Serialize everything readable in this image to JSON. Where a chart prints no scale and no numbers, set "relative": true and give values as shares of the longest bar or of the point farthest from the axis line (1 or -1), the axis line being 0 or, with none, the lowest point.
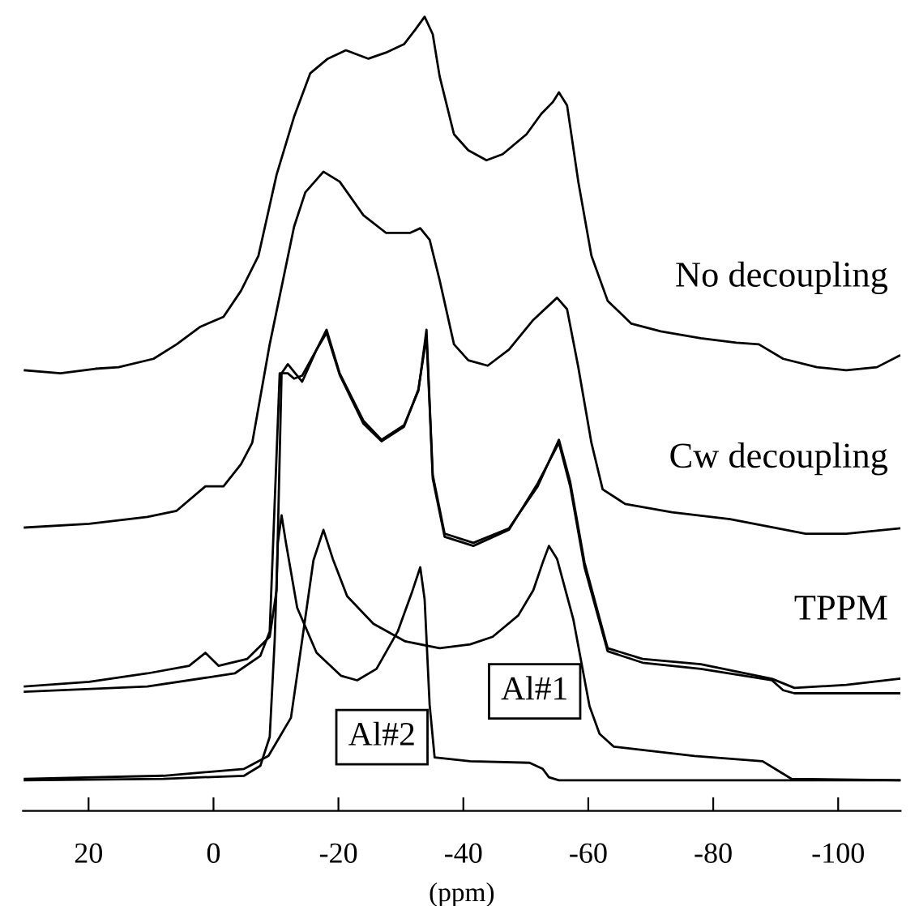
{
  "chart_data": {
    "type": "line",
    "relative": true,
    "xlabel": "(ppm)",
    "xlim": [
      30.5,
      -110
    ],
    "xticks": [
      20,
      0,
      -20,
      -40,
      -60,
      -80,
      -100
    ],
    "tick_labels": "x",
    "grid": false,
    "legend": false,
    "marker": "none",
    "line_style": "solid",
    "series": [
      {
        "name": "No decoupling",
        "color": "#000000",
        "x": [
          30.2,
          24.5,
          18.9,
          15.2,
          9.6,
          5.9,
          2.1,
          -1.6,
          -4.4,
          -7.2,
          -10.1,
          -12.9,
          -15.5,
          -18.3,
          -21.2,
          -24.8,
          -27.6,
          -30.5,
          -32.3,
          -33.8,
          -35.1,
          -36.2,
          -38.5,
          -40.8,
          -43.7,
          -46.3,
          -50.1,
          -52.5,
          -54.3,
          -55.3,
          -56.6,
          -58.4,
          -60.5,
          -63.1,
          -66.9,
          -71.6,
          -78.0,
          -83.7,
          -87.3,
          -91.2,
          -96.6,
          -101.3,
          -106.2,
          -109.8
        ],
        "values": [
          0.537,
          0.533,
          0.539,
          0.541,
          0.552,
          0.571,
          0.594,
          0.607,
          0.641,
          0.687,
          0.793,
          0.869,
          0.926,
          0.945,
          0.956,
          0.945,
          0.953,
          0.964,
          0.983,
          1.0,
          0.977,
          0.922,
          0.846,
          0.825,
          0.812,
          0.82,
          0.846,
          0.873,
          0.888,
          0.901,
          0.884,
          0.784,
          0.687,
          0.628,
          0.598,
          0.588,
          0.579,
          0.573,
          0.571,
          0.552,
          0.541,
          0.537,
          0.541,
          0.556
        ]
      },
      {
        "name": "Cw decoupling",
        "color": "#000000",
        "x": [
          30.2,
          19.9,
          10.6,
          5.9,
          1.3,
          -1.6,
          -4.4,
          -6.2,
          -9.0,
          -12.9,
          -14.7,
          -17.6,
          -20.2,
          -24.0,
          -27.6,
          -31.5,
          -33.1,
          -34.6,
          -36.2,
          -38.5,
          -40.8,
          -43.9,
          -47.3,
          -51.2,
          -55.0,
          -56.6,
          -58.4,
          -60.5,
          -62.3,
          -65.9,
          -73.4,
          -82.7,
          -94.8,
          -101.3,
          -109.8
        ],
        "values": [
          0.331,
          0.336,
          0.345,
          0.353,
          0.385,
          0.385,
          0.414,
          0.442,
          0.571,
          0.725,
          0.77,
          0.797,
          0.784,
          0.74,
          0.717,
          0.717,
          0.723,
          0.708,
          0.655,
          0.571,
          0.55,
          0.543,
          0.564,
          0.603,
          0.632,
          0.617,
          0.541,
          0.442,
          0.381,
          0.362,
          0.351,
          0.342,
          0.323,
          0.323,
          0.33
        ]
      },
      {
        "name": "TPPM",
        "color": "#000000",
        "x": [
          30.2,
          19.9,
          10.6,
          3.9,
          1.3,
          -0.8,
          -5.4,
          -9.0,
          -10.1,
          -10.9,
          -11.9,
          -14.2,
          -16.5,
          -18.1,
          -20.2,
          -24.0,
          -26.9,
          -30.5,
          -32.8,
          -34.1,
          -34.6,
          -35.1,
          -37.0,
          -41.6,
          -47.3,
          -51.9,
          -55.3,
          -57.1,
          -59.4,
          -63.1,
          -68.7,
          -78.0,
          -89.4,
          -93.0,
          -101.3,
          -109.8
        ],
        "values": [
          0.123,
          0.129,
          0.14,
          0.15,
          0.167,
          0.15,
          0.159,
          0.188,
          0.249,
          0.533,
          0.545,
          0.522,
          0.564,
          0.59,
          0.533,
          0.471,
          0.446,
          0.465,
          0.51,
          0.59,
          0.495,
          0.4,
          0.323,
          0.311,
          0.33,
          0.385,
          0.446,
          0.391,
          0.285,
          0.173,
          0.159,
          0.152,
          0.133,
          0.121,
          0.125,
          0.133
        ]
      },
      {
        "color": "#000000",
        "x": [
          30.2,
          10.6,
          -3.4,
          -7.5,
          -9.0,
          -10.6,
          -11.9,
          -12.9,
          -14.2,
          -16.5,
          -18.1,
          -20.2,
          -24.0,
          -26.9,
          -30.5,
          -32.8,
          -34.1,
          -34.6,
          -35.1,
          -37.0,
          -41.6,
          -47.3,
          -51.9,
          -55.3,
          -57.1,
          -59.4,
          -63.1,
          -68.7,
          -78.0,
          -89.4,
          -91.2,
          -93.0,
          -109.8
        ],
        "values": [
          0.116,
          0.123,
          0.14,
          0.163,
          0.195,
          0.533,
          0.533,
          0.526,
          0.53,
          0.564,
          0.586,
          0.531,
          0.467,
          0.444,
          0.463,
          0.512,
          0.581,
          0.49,
          0.395,
          0.319,
          0.307,
          0.328,
          0.389,
          0.442,
          0.385,
          0.279,
          0.169,
          0.154,
          0.146,
          0.131,
          0.118,
          0.114,
          0.114
        ]
      },
      {
        "color": "#000000",
        "x": [
          30.2,
          8.0,
          -4.9,
          -7.5,
          -9.0,
          -9.8,
          -10.3,
          -10.9,
          -11.6,
          -13.4,
          -16.5,
          -20.4,
          -23.0,
          -26.1,
          -29.5,
          -31.8,
          -33.1,
          -33.8,
          -34.6,
          -35.4,
          -41.1,
          -50.6,
          -52.7,
          -53.7,
          -55.3,
          -110.0
        ],
        "values": [
          0.0,
          0.002,
          0.006,
          0.019,
          0.057,
          0.184,
          0.311,
          0.347,
          0.311,
          0.226,
          0.167,
          0.137,
          0.131,
          0.146,
          0.195,
          0.247,
          0.279,
          0.237,
          0.099,
          0.03,
          0.025,
          0.023,
          0.015,
          0.004,
          0.0,
          0.0
        ]
      },
      {
        "color": "#000000",
        "x": [
          30.2,
          8.0,
          -4.9,
          -8.8,
          -10.6,
          -12.4,
          -14.2,
          -16.0,
          -17.6,
          -19.1,
          -21.4,
          -25.6,
          -30.7,
          -36.2,
          -41.1,
          -44.7,
          -48.8,
          -51.2,
          -52.7,
          -53.7,
          -55.0,
          -57.6,
          -60.2,
          -61.8,
          -64.1,
          -77.0,
          -87.9,
          -90.7,
          -92.5,
          -110.0
        ],
        "values": [
          0.002,
          0.006,
          0.015,
          0.032,
          0.057,
          0.082,
          0.184,
          0.288,
          0.328,
          0.29,
          0.241,
          0.205,
          0.182,
          0.173,
          0.178,
          0.188,
          0.216,
          0.249,
          0.285,
          0.307,
          0.29,
          0.211,
          0.097,
          0.061,
          0.044,
          0.032,
          0.025,
          0.011,
          0.002,
          0.0
        ]
      }
    ],
    "annotations": [
      "Al#2",
      "Al#1"
    ]
  }
}
